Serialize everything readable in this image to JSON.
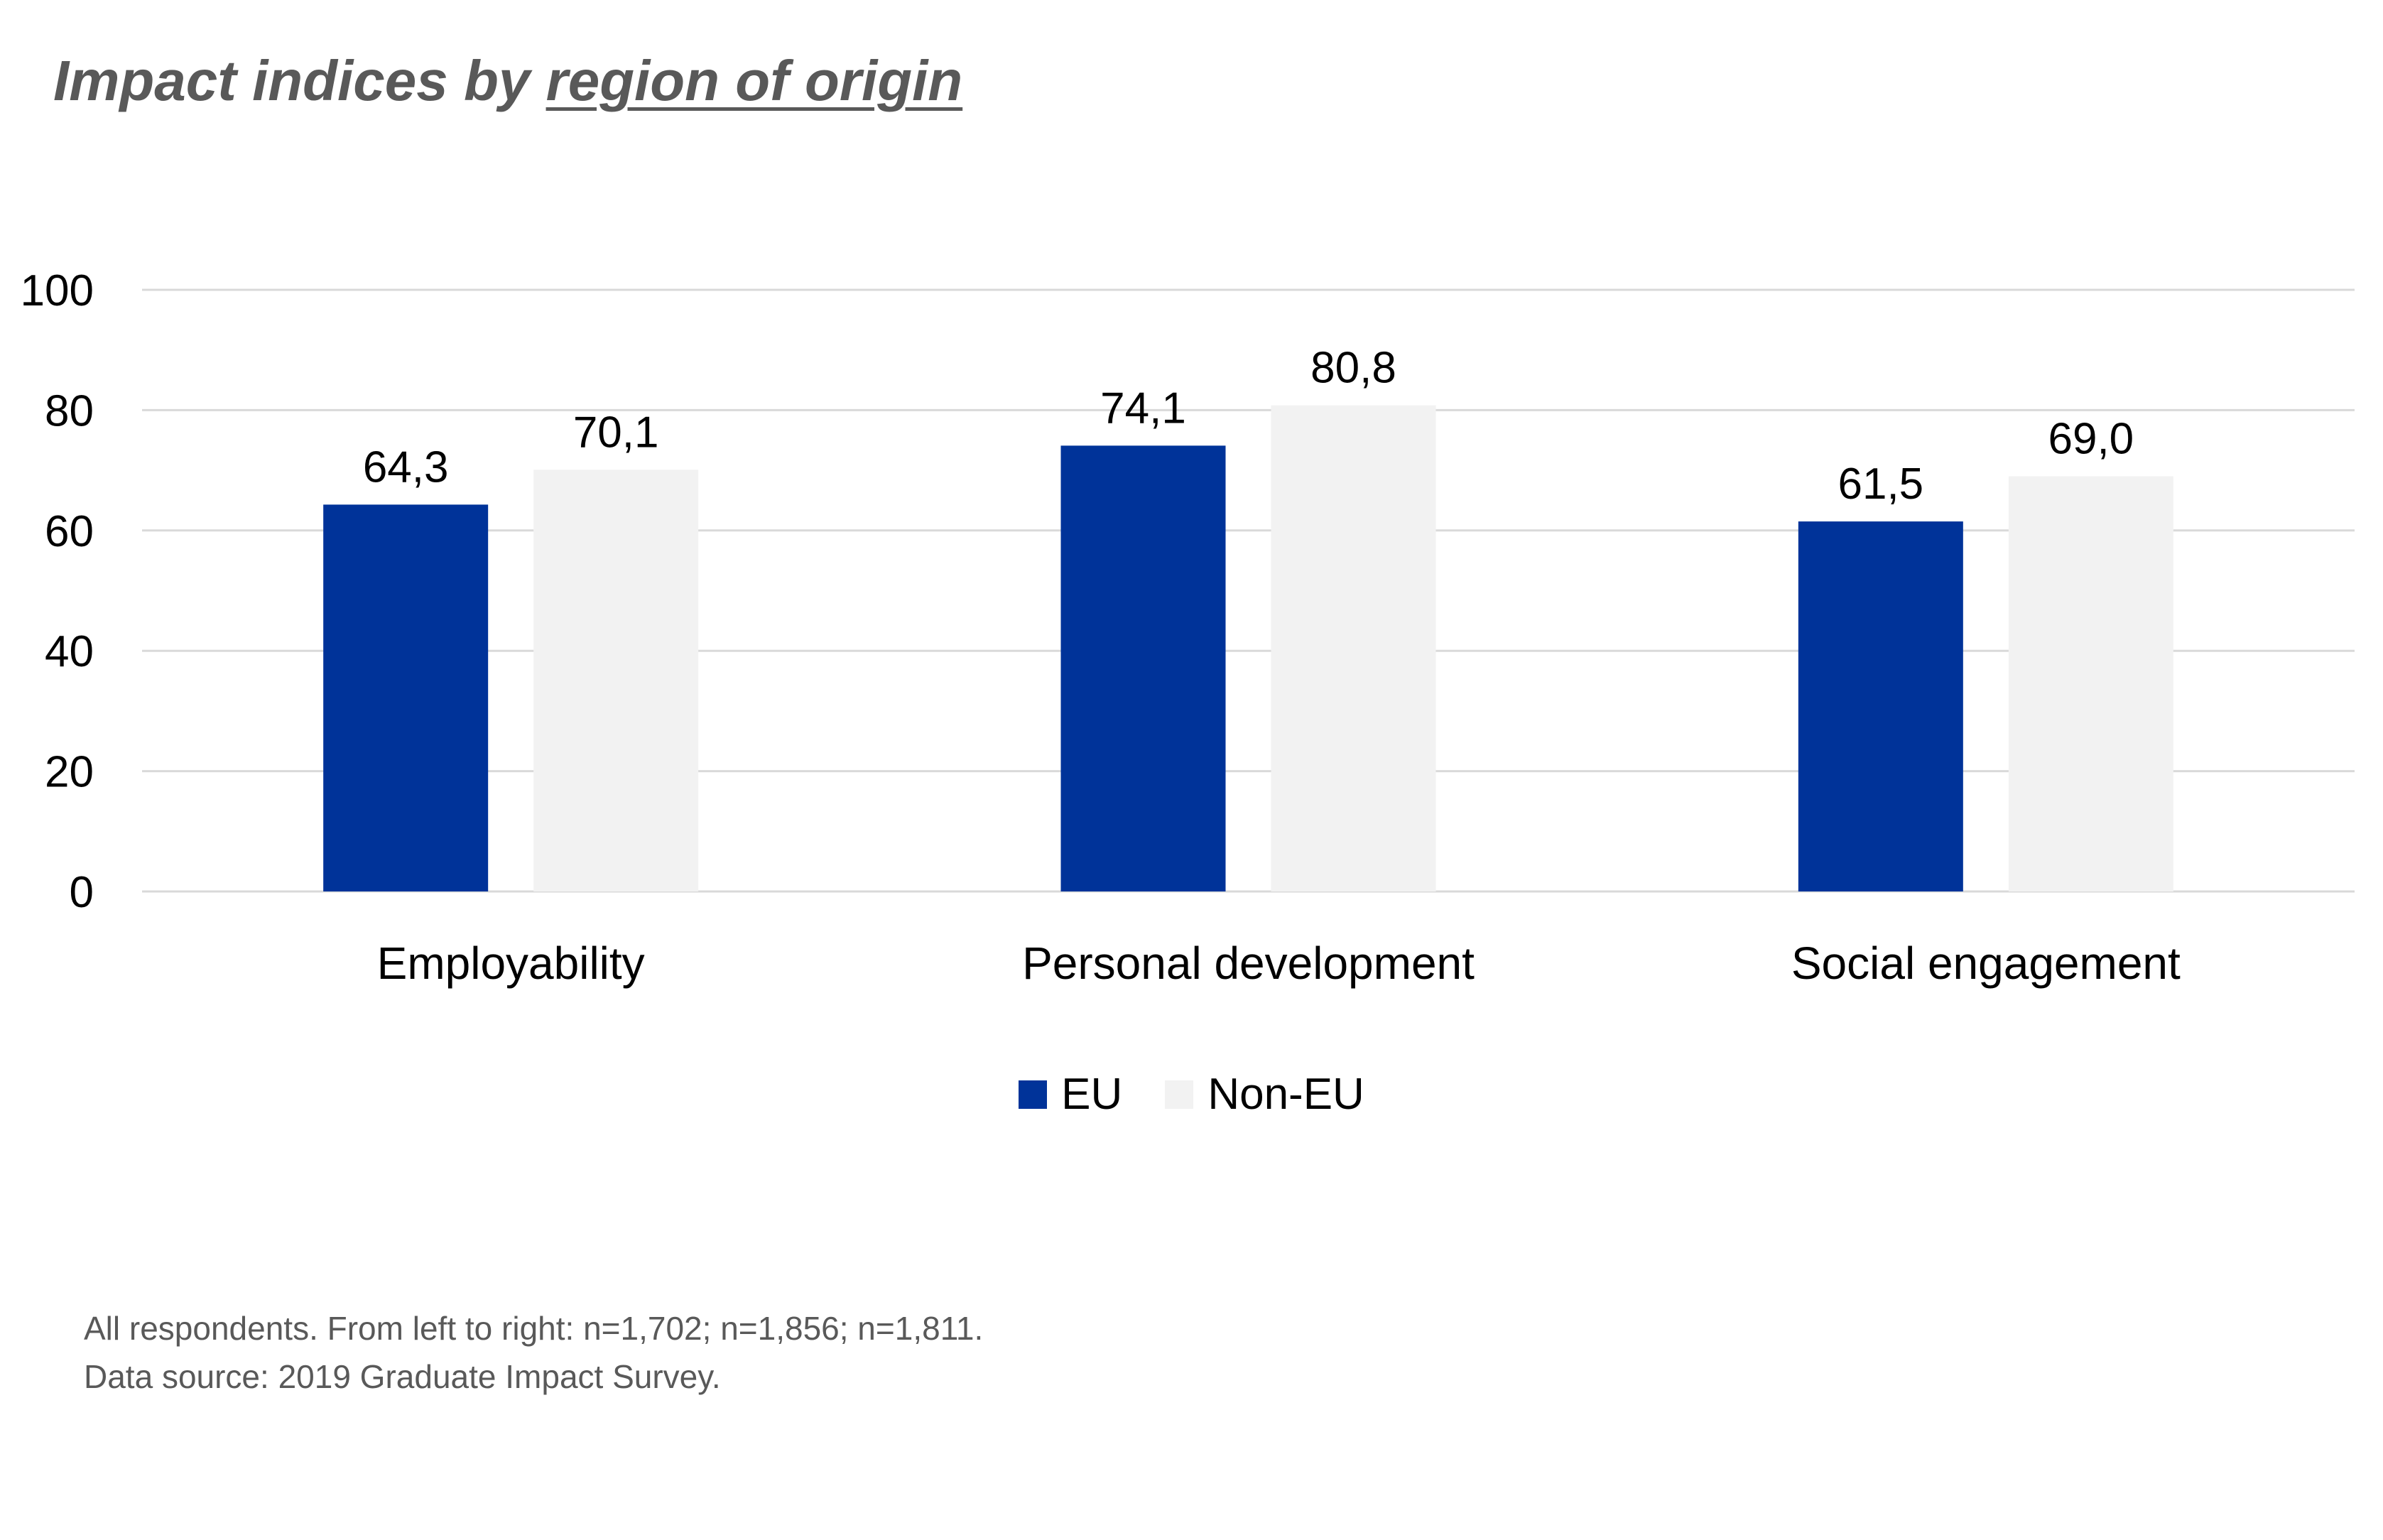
{
  "title": {
    "main": "Impact indices by ",
    "underlined": "region of origin"
  },
  "colors": {
    "eu": "#003399",
    "non_eu": "#f2f2f2",
    "grid": "#d9d9d9",
    "text": "#000000"
  },
  "chart_data": {
    "type": "bar",
    "categories": [
      "Employability",
      "Personal development",
      "Social engagement"
    ],
    "series": [
      {
        "name": "EU",
        "values": [
          64.3,
          74.1,
          61.5
        ],
        "labels": [
          "64,3",
          "74,1",
          "61,5"
        ]
      },
      {
        "name": "Non-EU",
        "values": [
          70.1,
          80.8,
          69.0
        ],
        "labels": [
          "70,1",
          "80,8",
          "69,0"
        ]
      }
    ],
    "ylim": [
      0,
      100
    ],
    "yticks": [
      0,
      20,
      40,
      60,
      80,
      100
    ],
    "grid": true,
    "legend": "bottom-center"
  },
  "legend": [
    {
      "label": "EU",
      "color": "#003399"
    },
    {
      "label": "Non-EU",
      "color": "#f2f2f2"
    }
  ],
  "footnote": {
    "line1": "All respondents. From left to right: n=1,702; n=1,856; n=1,811.",
    "line2": "Data source: 2019 Graduate Impact Survey."
  }
}
